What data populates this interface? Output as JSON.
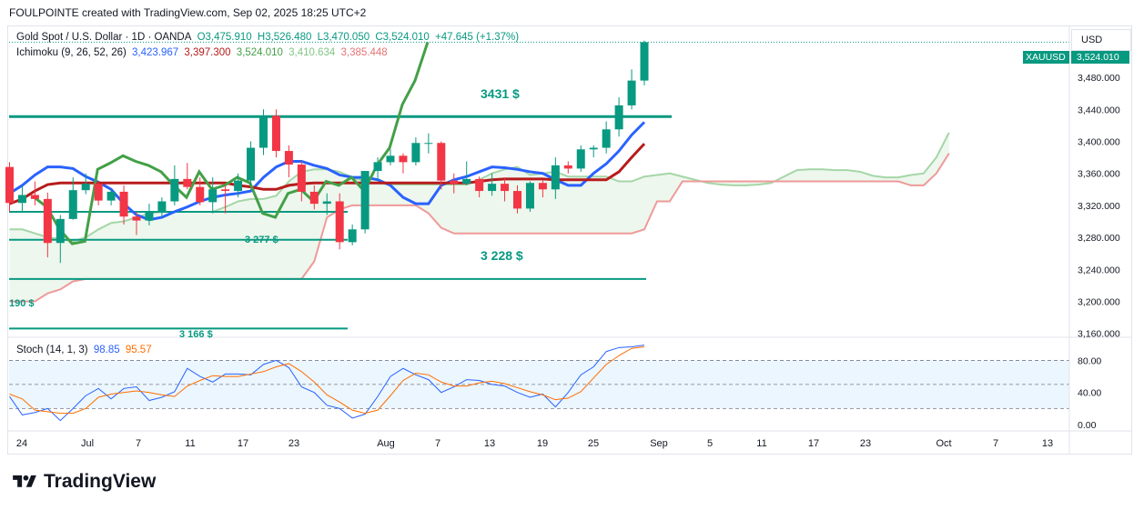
{
  "header": {
    "title": "FOULPOINTE created with TradingView.com, Sep 02, 2025 18:25 UTC+2"
  },
  "legend": {
    "symbol": "Gold Spot / U.S. Dollar · 1D · OANDA",
    "open": "O3,475.910",
    "high": "H3,526.480",
    "low": "L3,470.050",
    "close": "C3,524.010",
    "change": "+47.645 (+1.37%)",
    "ichimoku_name": "Ichimoku (9, 26, 52, 26)",
    "ichimoku_values": [
      "3,423.967",
      "3,397.300",
      "3,524.010",
      "3,410.634",
      "3,385.448"
    ],
    "stoch_name": "Stoch (14, 1, 3)",
    "stoch_values": [
      "98.85",
      "95.57"
    ]
  },
  "currency": "USD",
  "symbol_tag": "XAUUSD",
  "last_price": "3,524.010",
  "price_axis": [
    "3,480.000",
    "3,440.000",
    "3,400.000",
    "3,360.000",
    "3,320.000",
    "3,280.000",
    "3,240.000",
    "3,200.000",
    "3,160.000"
  ],
  "stoch_axis": [
    "80.00",
    "40.00",
    "0.00"
  ],
  "time_axis": [
    "24",
    "Jul",
    "7",
    "11",
    "17",
    "23",
    "Aug",
    "7",
    "13",
    "19",
    "25",
    "Sep",
    "5",
    "11",
    "17",
    "23",
    "Oct",
    "7",
    "13"
  ],
  "annotations": {
    "level_3431": "3431 $",
    "level_3277": "3 277 $",
    "level_3228": "3 228 $",
    "level_3190": "190 $",
    "level_3166": "3 166 $"
  },
  "colors": {
    "up": "#089981",
    "down": "#f23645",
    "tenkan": "#2962ff",
    "kijun": "#b71c1c",
    "chikou": "#43a047",
    "span_a": "#a5d6a7",
    "span_b": "#ef9a9a",
    "level": "#089981",
    "stoch_k": "#2962ff",
    "stoch_d": "#ff6d00"
  },
  "brand": "TradingView",
  "chart_data": {
    "type": "candlestick",
    "x": [
      "Jun 24",
      "Jun 25",
      "Jun 26",
      "Jun 27",
      "Jun 30",
      "Jul 1",
      "Jul 2",
      "Jul 3",
      "Jul 4",
      "Jul 7",
      "Jul 8",
      "Jul 9",
      "Jul 10",
      "Jul 11",
      "Jul 14",
      "Jul 15",
      "Jul 16",
      "Jul 17",
      "Jul 18",
      "Jul 21",
      "Jul 22",
      "Jul 23",
      "Jul 24",
      "Jul 25",
      "Jul 28",
      "Jul 29",
      "Jul 30",
      "Jul 31",
      "Aug 1",
      "Aug 4",
      "Aug 5",
      "Aug 6",
      "Aug 7",
      "Aug 8",
      "Aug 11",
      "Aug 12",
      "Aug 13",
      "Aug 14",
      "Aug 15",
      "Aug 18",
      "Aug 19",
      "Aug 20",
      "Aug 21",
      "Aug 22",
      "Aug 25",
      "Aug 26",
      "Aug 27",
      "Aug 28",
      "Aug 29",
      "Sep 1",
      "Sep 2"
    ],
    "ohlc": [
      [
        3368,
        3374,
        3312,
        3323
      ],
      [
        3323,
        3345,
        3312,
        3333
      ],
      [
        3333,
        3350,
        3320,
        3328
      ],
      [
        3328,
        3336,
        3255,
        3273
      ],
      [
        3273,
        3308,
        3248,
        3303
      ],
      [
        3303,
        3355,
        3302,
        3339
      ],
      [
        3339,
        3360,
        3334,
        3347
      ],
      [
        3347,
        3350,
        3320,
        3326
      ],
      [
        3326,
        3340,
        3320,
        3337
      ],
      [
        3337,
        3345,
        3296,
        3306
      ],
      [
        3306,
        3312,
        3283,
        3301
      ],
      [
        3301,
        3322,
        3295,
        3313
      ],
      [
        3313,
        3330,
        3305,
        3325
      ],
      [
        3325,
        3370,
        3320,
        3353
      ],
      [
        3353,
        3373,
        3340,
        3343
      ],
      [
        3343,
        3355,
        3320,
        3324
      ],
      [
        3324,
        3355,
        3310,
        3340
      ],
      [
        3340,
        3345,
        3310,
        3338
      ],
      [
        3338,
        3360,
        3330,
        3351
      ],
      [
        3351,
        3400,
        3345,
        3392
      ],
      [
        3392,
        3440,
        3383,
        3432
      ],
      [
        3432,
        3440,
        3380,
        3388
      ],
      [
        3388,
        3395,
        3355,
        3371
      ],
      [
        3371,
        3375,
        3325,
        3337
      ],
      [
        3337,
        3345,
        3315,
        3322
      ],
      [
        3322,
        3335,
        3308,
        3325
      ],
      [
        3325,
        3335,
        3265,
        3274
      ],
      [
        3274,
        3296,
        3270,
        3290
      ],
      [
        3290,
        3363,
        3285,
        3363
      ],
      [
        3363,
        3380,
        3350,
        3374
      ],
      [
        3374,
        3390,
        3370,
        3382
      ],
      [
        3382,
        3385,
        3360,
        3374
      ],
      [
        3374,
        3405,
        3370,
        3398
      ],
      [
        3398,
        3410,
        3385,
        3398
      ],
      [
        3398,
        3400,
        3340,
        3351
      ],
      [
        3351,
        3360,
        3335,
        3347
      ],
      [
        3347,
        3375,
        3345,
        3353
      ],
      [
        3353,
        3356,
        3330,
        3338
      ],
      [
        3338,
        3360,
        3332,
        3347
      ],
      [
        3347,
        3355,
        3325,
        3338
      ],
      [
        3338,
        3345,
        3310,
        3316
      ],
      [
        3316,
        3350,
        3312,
        3348
      ],
      [
        3348,
        3352,
        3330,
        3340
      ],
      [
        3340,
        3380,
        3328,
        3370
      ],
      [
        3370,
        3375,
        3360,
        3366
      ],
      [
        3366,
        3395,
        3362,
        3390
      ],
      [
        3390,
        3395,
        3380,
        3392
      ],
      [
        3392,
        3425,
        3385,
        3415
      ],
      [
        3415,
        3455,
        3406,
        3445
      ],
      [
        3445,
        3490,
        3440,
        3476
      ],
      [
        3476,
        3526,
        3470,
        3524
      ]
    ],
    "levels": [
      3431,
      3277,
      3228,
      3190,
      3166
    ],
    "ylim": [
      3140,
      3530
    ],
    "ichimoku": {
      "tenkan": [
        3335,
        3345,
        3358,
        3368,
        3368,
        3366,
        3356,
        3349,
        3340,
        3322,
        3308,
        3302,
        3305,
        3312,
        3318,
        3325,
        3330,
        3333,
        3335,
        3338,
        3355,
        3368,
        3375,
        3375,
        3370,
        3366,
        3358,
        3355,
        3355,
        3352,
        3345,
        3330,
        3322,
        3322,
        3345,
        3352,
        3356,
        3362,
        3368,
        3367,
        3365,
        3362,
        3360,
        3352,
        3345,
        3345,
        3360,
        3372,
        3388,
        3408,
        3424
      ],
      "kijun": [
        3322,
        3328,
        3338,
        3346,
        3348,
        3348,
        3348,
        3348,
        3348,
        3348,
        3348,
        3348,
        3348,
        3348,
        3348,
        3348,
        3348,
        3348,
        3345,
        3343,
        3340,
        3340,
        3345,
        3347,
        3348,
        3348,
        3348,
        3348,
        3348,
        3348,
        3348,
        3348,
        3348,
        3348,
        3348,
        3348,
        3348,
        3350,
        3352,
        3353,
        3353,
        3353,
        3353,
        3352,
        3352,
        3352,
        3352,
        3352,
        3362,
        3380,
        3397
      ],
      "span_a": [
        3290,
        3290,
        3285,
        3280,
        3278,
        3275,
        3280,
        3290,
        3298,
        3300,
        3305,
        3310,
        3312,
        3312,
        3312,
        3312,
        3312,
        3318,
        3325,
        3328,
        3328,
        3332,
        3350,
        3362,
        3365,
        3365,
        3362,
        3355,
        3350,
        3348,
        3346,
        3346,
        3346,
        3346,
        3346,
        3346,
        3346,
        3352,
        3360,
        3365,
        3368,
        3358,
        3360,
        3362,
        3356,
        3356,
        3356,
        3356,
        3350,
        3350,
        3356,
        3358,
        3360,
        3356,
        3352,
        3348,
        3346,
        3345,
        3345,
        3346,
        3348,
        3356,
        3364,
        3365,
        3365,
        3364,
        3364,
        3362,
        3357,
        3355,
        3355,
        3358,
        3360,
        3380,
        3411
      ],
      "span_b": [
        3200,
        3200,
        3200,
        3210,
        3215,
        3225,
        3228,
        3228,
        3228,
        3228,
        3228,
        3228,
        3228,
        3228,
        3228,
        3228,
        3228,
        3228,
        3228,
        3228,
        3228,
        3228,
        3228,
        3228,
        3250,
        3305,
        3315,
        3320,
        3320,
        3320,
        3320,
        3320,
        3320,
        3310,
        3292,
        3285,
        3285,
        3285,
        3285,
        3285,
        3285,
        3285,
        3285,
        3285,
        3285,
        3285,
        3285,
        3285,
        3285,
        3285,
        3290,
        3325,
        3325,
        3350,
        3350,
        3350,
        3350,
        3350,
        3350,
        3350,
        3350,
        3350,
        3350,
        3350,
        3350,
        3350,
        3350,
        3350,
        3350,
        3350,
        3350,
        3345,
        3345,
        3360,
        3385
      ],
      "chikou_note": "lagging line from closes shifted back 26 periods"
    },
    "stoch": {
      "k": [
        35,
        12,
        15,
        20,
        5,
        20,
        36,
        45,
        32,
        45,
        47,
        30,
        34,
        41,
        70,
        60,
        53,
        63,
        63,
        62,
        75,
        80,
        71,
        47,
        40,
        24,
        20,
        8,
        13,
        35,
        60,
        70,
        62,
        56,
        40,
        47,
        56,
        55,
        50,
        48,
        40,
        34,
        38,
        22,
        40,
        62,
        72,
        91,
        96,
        97,
        99
      ],
      "d": [
        38,
        32,
        18,
        16,
        14,
        14,
        20,
        34,
        38,
        40,
        42,
        40,
        37,
        35,
        48,
        55,
        61,
        60,
        60,
        63,
        66,
        72,
        76,
        66,
        53,
        37,
        28,
        18,
        14,
        18,
        36,
        55,
        64,
        62,
        53,
        48,
        48,
        52,
        54,
        51,
        46,
        41,
        37,
        31,
        33,
        41,
        58,
        75,
        86,
        95,
        97
      ],
      "ylim": [
        0,
        100
      ],
      "upper": 80,
      "lower": 20
    }
  }
}
